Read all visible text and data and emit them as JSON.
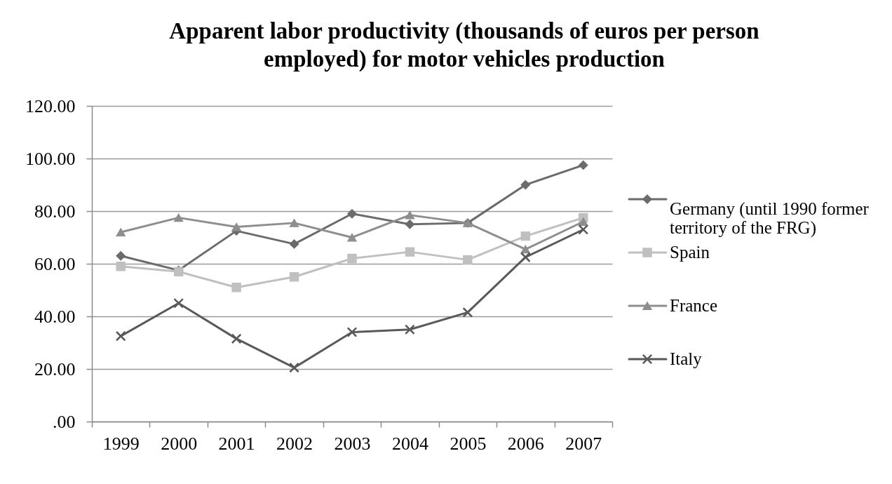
{
  "chart_data": {
    "type": "line",
    "title": "Apparent labor productivity (thousands of euros per person employed) for motor vehicles production",
    "categories": [
      "1999",
      "2000",
      "2001",
      "2002",
      "2003",
      "2004",
      "2005",
      "2006",
      "2007"
    ],
    "series": [
      {
        "name": "Germany (until 1990 former territory of the FRG)",
        "color": "#6b6b6b",
        "marker": "diamond",
        "values": [
          63,
          57.5,
          72.5,
          67.5,
          79,
          75,
          75.5,
          90,
          97.5
        ]
      },
      {
        "name": "Spain",
        "color": "#c0c0c0",
        "marker": "square",
        "values": [
          59,
          57,
          51,
          55,
          62,
          64.5,
          61.5,
          70.5,
          77.5
        ]
      },
      {
        "name": "France",
        "color": "#8e8e8e",
        "marker": "triangle",
        "values": [
          72,
          77.5,
          74,
          75.5,
          70,
          78.5,
          75.5,
          65.5,
          76
        ]
      },
      {
        "name": "Italy",
        "color": "#595959",
        "marker": "cross",
        "values": [
          32.5,
          45,
          31.5,
          20.5,
          34,
          35,
          41.5,
          62.5,
          73
        ]
      }
    ],
    "ylim": [
      0,
      120
    ],
    "yticks": [
      {
        "value": 0,
        "label": ".00"
      },
      {
        "value": 20,
        "label": "20.00"
      },
      {
        "value": 40,
        "label": "40.00"
      },
      {
        "value": 60,
        "label": "60.00"
      },
      {
        "value": 80,
        "label": "80.00"
      },
      {
        "value": 100,
        "label": "100.00"
      },
      {
        "value": 120,
        "label": "120.00"
      }
    ],
    "grid": "y",
    "legend": "right",
    "line_style": "solid"
  }
}
